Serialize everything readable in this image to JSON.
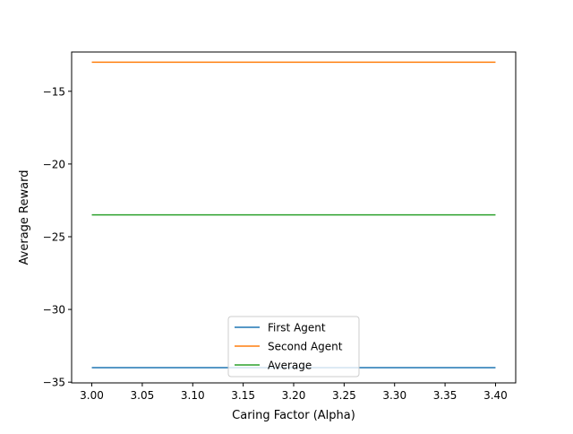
{
  "chart_data": {
    "type": "line",
    "title": "",
    "xlabel": "Caring Factor (Alpha)",
    "ylabel": "Average Reward",
    "xlim": [
      2.98,
      3.42
    ],
    "ylim": [
      -35.05,
      -12.3
    ],
    "xticks": [
      3.0,
      3.05,
      3.1,
      3.15,
      3.2,
      3.25,
      3.3,
      3.35,
      3.4
    ],
    "xtick_labels": [
      "3.00",
      "3.05",
      "3.10",
      "3.15",
      "3.20",
      "3.25",
      "3.30",
      "3.35",
      "3.40"
    ],
    "yticks": [
      -35,
      -30,
      -25,
      -20,
      -15
    ],
    "ytick_labels": [
      "−35",
      "−30",
      "−25",
      "−20",
      "−15"
    ],
    "grid": false,
    "legend_position": "lower center",
    "x": [
      3.0,
      3.4
    ],
    "series": [
      {
        "name": "First Agent",
        "color": "#1f77b4",
        "values": [
          -34.0,
          -34.0
        ]
      },
      {
        "name": "Second Agent",
        "color": "#ff7f0e",
        "values": [
          -13.0,
          -13.0
        ]
      },
      {
        "name": "Average",
        "color": "#2ca02c",
        "values": [
          -23.5,
          -23.5
        ]
      }
    ]
  }
}
